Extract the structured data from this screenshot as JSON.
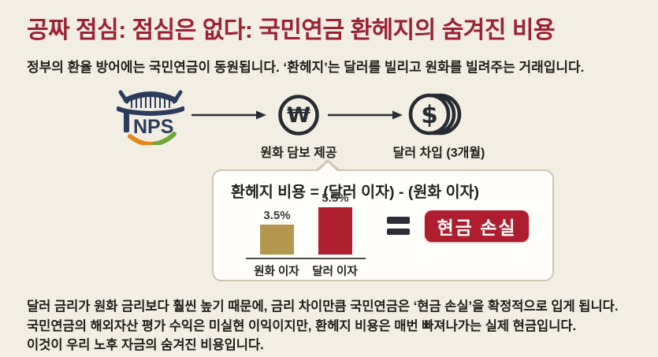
{
  "colors": {
    "background": "#f2eee4",
    "title": "#9b2133",
    "body_text": "#1e1d1a",
    "nps_navy": "#2c3c5e",
    "nps_swoosh_orange": "#e8861f",
    "nps_swoosh_green": "#6fa63c",
    "icon_dark": "#272b32",
    "callout_border": "#cdc5b0",
    "callout_bg": "#fffefa",
    "won_bar": "#b3974f",
    "dollar_bar": "#ae1f30",
    "loss_box_bg": "#ae1e2e"
  },
  "header": {
    "title": "공짜 점심: 점심은 없다: 국민연금 환헤지의 숨겨진 비용",
    "subtitle": "정부의 환율 방어에는 국민연금이 동원됩니다. ‘환헤지’는 달러를 빌리고 원화를 빌려주는 거래입니다."
  },
  "flow": {
    "nps_logo_text": "NPS",
    "won_symbol": "₩",
    "dollar_symbol": "$",
    "won_step_label": "원화 담보 제공",
    "dollar_step_label": "달러 차입 (3개월)"
  },
  "callout": {
    "formula": "환헤지 비용 = (달러 이자) - (원화 이자)",
    "result_label": "현금 손실"
  },
  "chart_data": {
    "type": "bar",
    "title": "환헤지 비용 = (달러 이자) - (원화 이자)",
    "categories": [
      "원화 이자",
      "달러 이자"
    ],
    "values": [
      3.5,
      5.5
    ],
    "value_labels": [
      "3.5%",
      "5.5%"
    ],
    "bar_colors": [
      "#b3974f",
      "#ae1f30"
    ],
    "xlabel": "",
    "ylabel": "",
    "ylim": [
      0,
      6
    ],
    "grid": false,
    "legend": false
  },
  "footer": {
    "lines": [
      "달러 금리가 원화 금리보다 훨씬 높기 때문에, 금리 차이만큼 국민연금은 ‘현금 손실’을 확정적으로 입게 됩니다.",
      "국민연금의 해외자산 평가 수익은 미실현 이익이지만, 환헤지 비용은 매번 빠져나가는 실제 현금입니다.",
      "이것이 우리 노후 자금의 숨겨진 비용입니다."
    ]
  }
}
